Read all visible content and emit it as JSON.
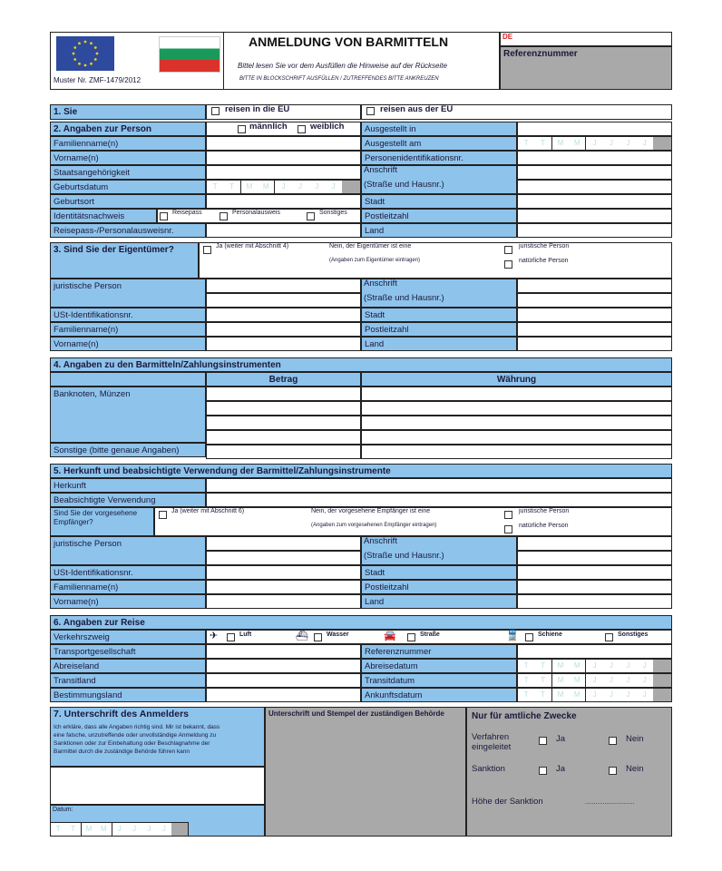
{
  "header": {
    "title": "ANMELDUNG VON BARMITTELN",
    "subtitle": "Bittel lesen Sie vor dem Ausfüllen die Hinweise auf der Rückseite",
    "instruction": "BITTE IN BLOCKSCHRIFT AUSFÜLLEN / ZUTREFFENDES BITTE ANKREUZEN",
    "model": "Muster Nr. ZMF-1479/2012",
    "country": "DE",
    "reference_label": "Referenznummer",
    "logos": [
      "eu-flag",
      "bulgarian-flag"
    ]
  },
  "date_letters": [
    "T",
    "T",
    "M",
    "M",
    "J",
    "J",
    "J",
    "J"
  ],
  "s1": {
    "title": "1. Sie",
    "in": "reisen in die EU",
    "out": "reisen aus der EU"
  },
  "s2": {
    "title": "2. Angaben zur Person",
    "male": "männlich",
    "female": "weiblich",
    "left": [
      "Familienname(n)",
      "Vorname(n)",
      "Staatsangehörigkeit",
      "Geburtsdatum",
      "Geburtsort",
      "Identitätsnachweis",
      "Reisepass-/Personalausweisnr."
    ],
    "id_options": [
      "Reisepass",
      "Personalausweis",
      "Sonstiges"
    ],
    "right": [
      "Ausgestellt in",
      "Ausgestellt am",
      "Personenidentifikationsnr.",
      "Anschrift",
      "(Straße und Hausnr.)",
      "Stadt",
      "Postleitzahl",
      "Land"
    ]
  },
  "s3": {
    "title": "3. Sind Sie der Eigentümer?",
    "yes": "Ja  (weiter mit Abschnitt 4)",
    "no": "Nein, der Eigentümer ist eine",
    "note": "(Angaben zum Eigentümer eintragen)",
    "legal": "juristische Person",
    "natural": "natürliche Person",
    "left": [
      "juristische Person",
      "",
      "USt-Identifikationsnr.",
      "Familienname(n)",
      "Vorname(n)"
    ],
    "right": [
      "Anschrift",
      "(Straße und Hausnr.)",
      "Stadt",
      "Postleitzahl",
      "Land"
    ]
  },
  "s4": {
    "title": "4. Angaben zu den Barmitteln/Zahlungsinstrumenten",
    "amount": "Betrag",
    "currency": "Währung",
    "cash": "Banknoten, Münzen",
    "other": "Sonstige (bitte genaue Angaben)"
  },
  "s5": {
    "title": "5. Herkunft und beabsichtigte Verwendung der Barmittel/Zahlungsinstrumente",
    "origin": "Herkunft",
    "use": "Beabsichtigte Verwendung",
    "recipient_q": "Sind Sie der vorgesehene Empfänger?",
    "yes": "Ja  (weiter mit Abschnitt 6)",
    "no": "Nein, der vorgesehene Empfänger ist eine",
    "note": "(Angaben zum vorgesehenen Empfänger eintragen)",
    "legal": "juristische Person",
    "natural": "natürliche Person",
    "left": [
      "juristische Person",
      "",
      "USt-Identifikationsnr.",
      "Familienname(n)",
      "Vorname(n)"
    ],
    "right": [
      "Anschrift",
      "(Straße und Hausnr.)",
      "Stadt",
      "Postleitzahl",
      "Land"
    ]
  },
  "s6": {
    "title": "6. Angaben zur Reise",
    "mode": "Verkehrszweig",
    "modes": [
      "Luft",
      "Wasser",
      "Straße",
      "Schiene",
      "Sonstiges"
    ],
    "left": [
      "Transportgesellschaft",
      "Abreiseland",
      "Transitland",
      "Bestimmungsland"
    ],
    "right": [
      "Referenznummer",
      "Abreisedatum",
      "Transitdatum",
      "Ankunftsdatum"
    ]
  },
  "s7": {
    "title": "7. Unterschrift des Anmelders",
    "declaration": [
      "Ich erkläre, dass alle Angaben richtig sind. Mir ist bekannt, dass",
      "eine falsche, unzutreffende oder unvollständige Anmeldung zu",
      "Sanktionen oder zur Einbehaltung oder Beschlagnahme der",
      "Barmittel durch die zuständige Behörde führen kann"
    ],
    "date": "Datum:",
    "stamp": "Unterschrift und Stempel der zuständigen Behörde",
    "official": "Nur für amtliche Zwecke",
    "proceedings": "Verfahren eingeleitet",
    "sanction": "Sanktion",
    "yes": "Ja",
    "no": "Nein",
    "amount": "Höhe der Sanktion",
    "dots": "............................"
  }
}
